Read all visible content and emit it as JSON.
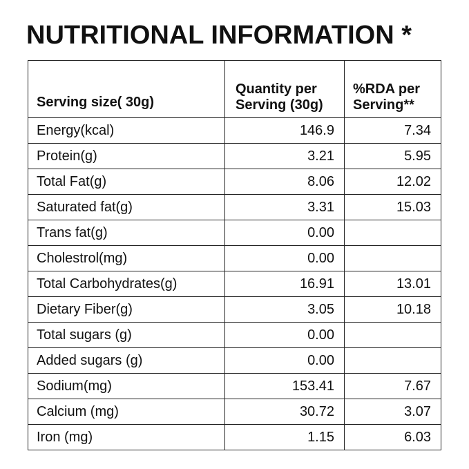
{
  "title": "NUTRITIONAL INFORMATION *",
  "header": {
    "serving": "Serving size( 30g)",
    "quantity": "Quantity per Serving (30g)",
    "rda": "%RDA per Serving**"
  },
  "rows": [
    {
      "label": "Energy(kcal)",
      "qty": "146.9",
      "rda": "7.34"
    },
    {
      "label": "Protein(g)",
      "qty": "3.21",
      "rda": "5.95"
    },
    {
      "label": "Total Fat(g)",
      "qty": "8.06",
      "rda": "12.02"
    },
    {
      "label": "Saturated fat(g)",
      "qty": "3.31",
      "rda": "15.03"
    },
    {
      "label": "Trans fat(g)",
      "qty": "0.00",
      "rda": ""
    },
    {
      "label": "Cholestrol(mg)",
      "qty": "0.00",
      "rda": ""
    },
    {
      "label": "Total Carbohydrates(g)",
      "qty": "16.91",
      "rda": "13.01"
    },
    {
      "label": "Dietary Fiber(g)",
      "qty": "3.05",
      "rda": "10.18"
    },
    {
      "label": "Total sugars (g)",
      "qty": "0.00",
      "rda": ""
    },
    {
      "label": "Added sugars (g)",
      "qty": "0.00",
      "rda": ""
    },
    {
      "label": "Sodium(mg)",
      "qty": "153.41",
      "rda": "7.67"
    },
    {
      "label": "Calcium (mg)",
      "qty": "30.72",
      "rda": "3.07"
    },
    {
      "label": "Iron (mg)",
      "qty": "1.15",
      "rda": "6.03"
    }
  ]
}
